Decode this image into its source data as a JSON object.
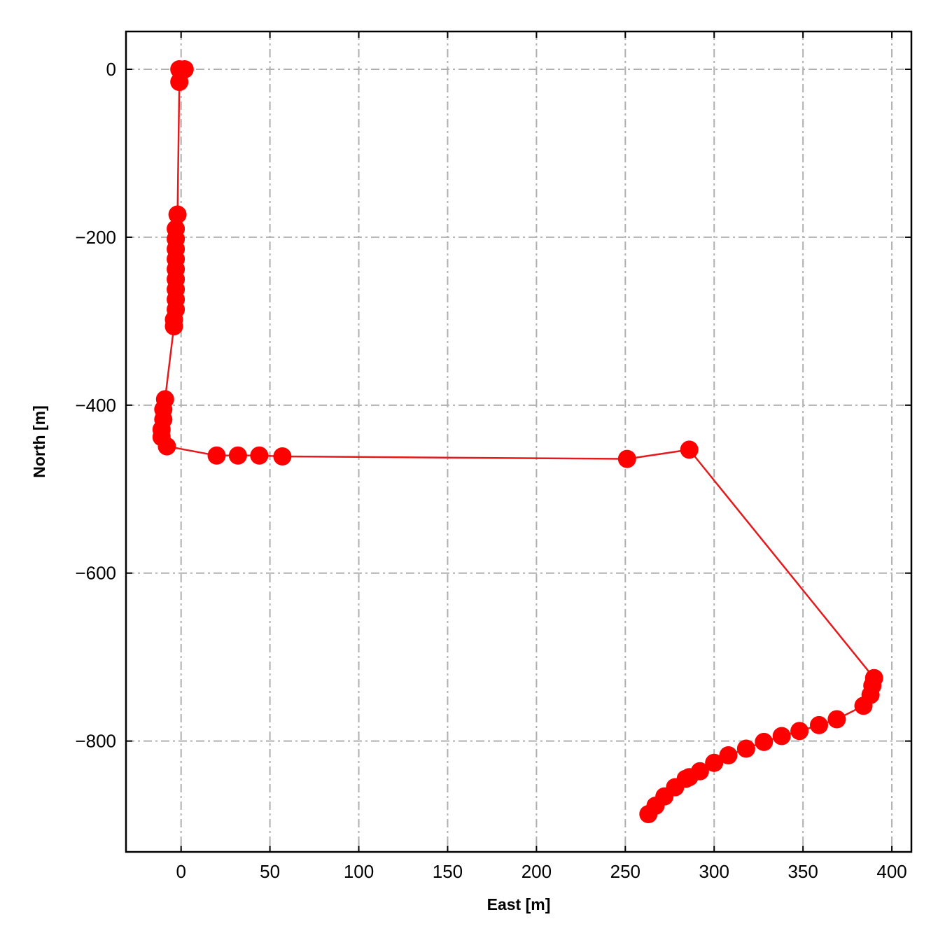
{
  "chart_data": {
    "type": "scatter",
    "title": "",
    "xlabel": "East [m]",
    "ylabel": "North [m]",
    "xlim": [
      -31,
      411
    ],
    "ylim": [
      -932,
      45
    ],
    "xticks": [
      0,
      50,
      100,
      150,
      200,
      250,
      300,
      350,
      400
    ],
    "yticks": [
      0,
      -200,
      -400,
      -600,
      -800
    ],
    "xtick_labels": [
      "0",
      "50",
      "100",
      "150",
      "200",
      "250",
      "300",
      "350",
      "400"
    ],
    "ytick_labels": [
      "0",
      "−200",
      "−400",
      "−600",
      "−800"
    ],
    "grid": true,
    "grid_style": "dash-dot",
    "tick_direction": "in",
    "series": [
      {
        "color": "#ff0000",
        "line_color": "#e31a1c",
        "markers": true,
        "connected": true,
        "points": [
          {
            "x": 2,
            "y": 0
          },
          {
            "x": -1,
            "y": 0
          },
          {
            "x": -1,
            "y": -15
          },
          {
            "x": -2,
            "y": -173
          },
          {
            "x": -3,
            "y": -190
          },
          {
            "x": -3,
            "y": -202
          },
          {
            "x": -3,
            "y": -214
          },
          {
            "x": -3,
            "y": -226
          },
          {
            "x": -3,
            "y": -238
          },
          {
            "x": -3,
            "y": -250
          },
          {
            "x": -3,
            "y": -262
          },
          {
            "x": -3,
            "y": -274
          },
          {
            "x": -3,
            "y": -286
          },
          {
            "x": -4,
            "y": -298
          },
          {
            "x": -4,
            "y": -306
          },
          {
            "x": -9,
            "y": -393
          },
          {
            "x": -10,
            "y": -405
          },
          {
            "x": -10,
            "y": -417
          },
          {
            "x": -11,
            "y": -429
          },
          {
            "x": -11,
            "y": -438
          },
          {
            "x": -8,
            "y": -449
          },
          {
            "x": 20,
            "y": -460
          },
          {
            "x": 32,
            "y": -460
          },
          {
            "x": 44,
            "y": -460
          },
          {
            "x": 57,
            "y": -461
          },
          {
            "x": 251,
            "y": -464
          },
          {
            "x": 286,
            "y": -453
          },
          {
            "x": 390,
            "y": -725
          },
          {
            "x": 389,
            "y": -734
          },
          {
            "x": 388,
            "y": -745
          },
          {
            "x": 384,
            "y": -758
          },
          {
            "x": 369,
            "y": -774
          },
          {
            "x": 359,
            "y": -781
          },
          {
            "x": 348,
            "y": -788
          },
          {
            "x": 338,
            "y": -794
          },
          {
            "x": 328,
            "y": -801
          },
          {
            "x": 318,
            "y": -809
          },
          {
            "x": 308,
            "y": -817
          },
          {
            "x": 300,
            "y": -826
          },
          {
            "x": 292,
            "y": -836
          },
          {
            "x": 286,
            "y": -843
          },
          {
            "x": 284,
            "y": -845
          },
          {
            "x": 278,
            "y": -855
          },
          {
            "x": 272,
            "y": -866
          },
          {
            "x": 267,
            "y": -877
          },
          {
            "x": 263,
            "y": -887
          }
        ]
      }
    ]
  }
}
